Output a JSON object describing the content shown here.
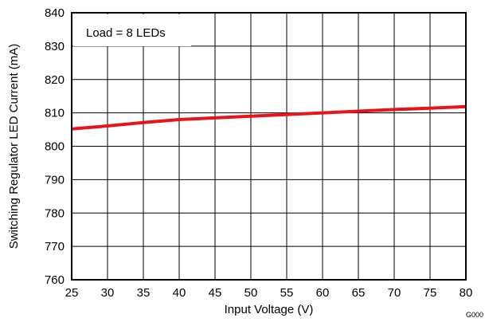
{
  "chart_data": {
    "type": "line",
    "xlabel": "Input Voltage (V)",
    "ylabel": "Switching Regulator LED Current (mA)",
    "xlim": [
      25,
      80
    ],
    "ylim": [
      760,
      840
    ],
    "xticks": [
      25,
      30,
      35,
      40,
      45,
      50,
      55,
      60,
      65,
      70,
      75,
      80
    ],
    "yticks": [
      760,
      770,
      780,
      790,
      800,
      810,
      820,
      830,
      840
    ],
    "grid": true,
    "annotation": "Load = 8 LEDs",
    "figure_id": "G000",
    "line_color": "#e8141b",
    "series": [
      {
        "x": [
          25,
          30,
          35,
          40,
          45,
          50,
          55,
          60,
          65,
          70,
          75,
          80
        ],
        "y": [
          805.2,
          806.1,
          807.1,
          808.0,
          808.5,
          809.0,
          809.5,
          810.0,
          810.5,
          811.0,
          811.4,
          811.9
        ]
      }
    ]
  }
}
